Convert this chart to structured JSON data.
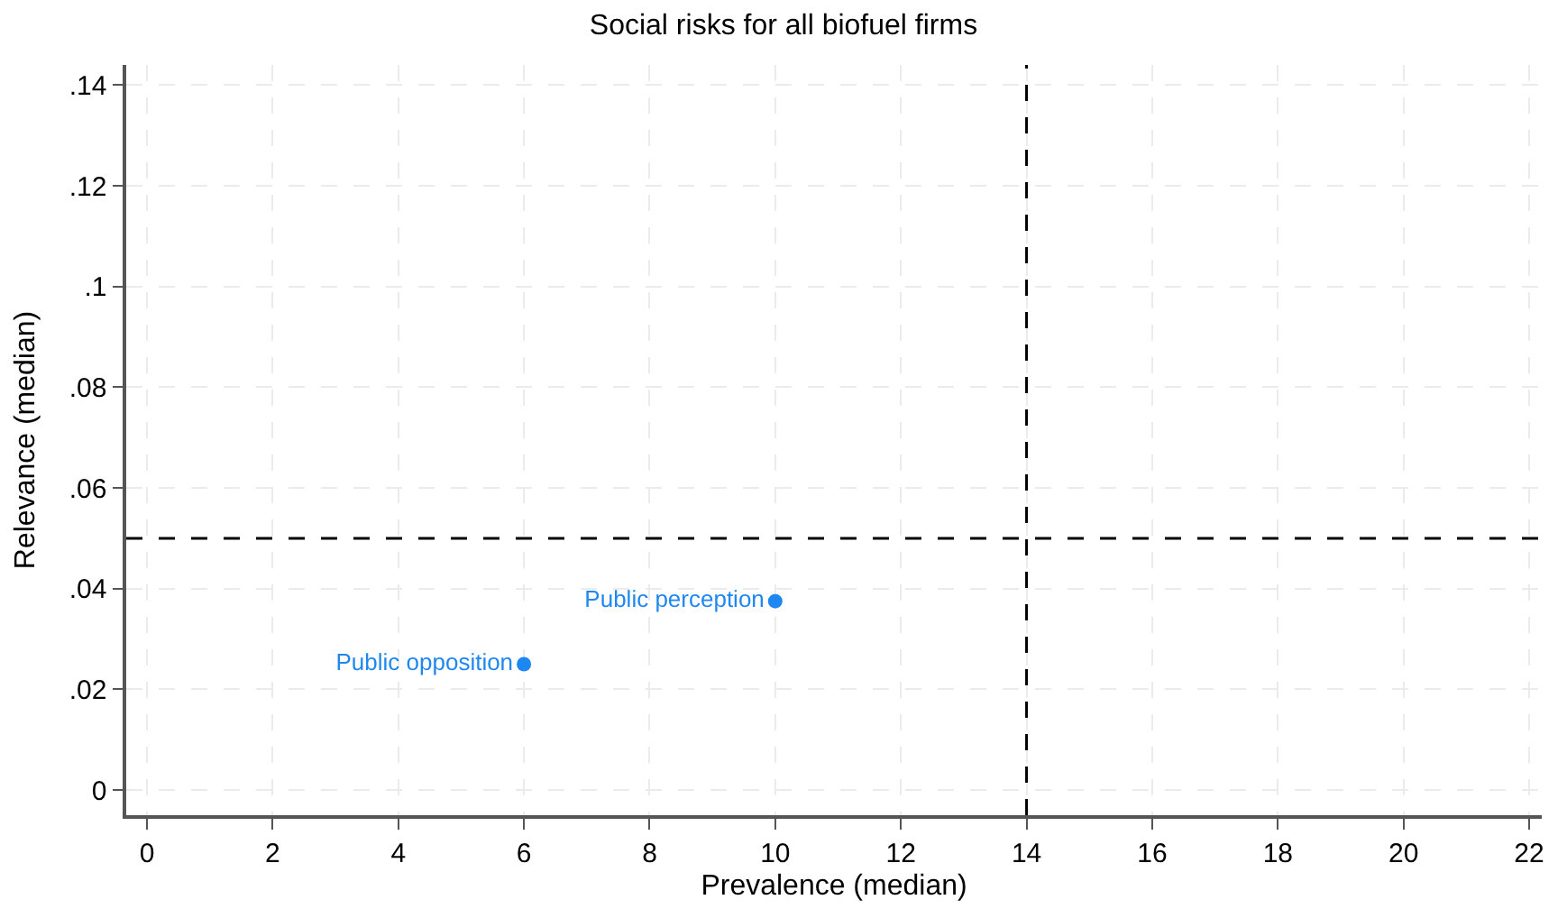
{
  "chart_data": {
    "type": "scatter",
    "title": "Social risks for all biofuel firms",
    "xlabel": "Prevalence (median)",
    "ylabel": "Relevance (median)",
    "x": [
      6,
      10
    ],
    "series": [
      {
        "color": "#1f87f2",
        "values": [
          0.025,
          0.0375
        ],
        "value_labels": [
          "Public opposition",
          "Public perception"
        ]
      }
    ],
    "xlim": [
      -0.33,
      22.2
    ],
    "xticks": [
      0,
      2,
      4,
      6,
      8,
      10,
      12,
      14,
      16,
      18,
      20,
      22
    ],
    "ylim": [
      -0.005,
      0.144
    ],
    "yticks": [
      {
        "value": 0,
        "label": "0"
      },
      {
        "value": 0.02,
        "label": ".02"
      },
      {
        "value": 0.04,
        "label": ".04"
      },
      {
        "value": 0.06,
        "label": ".06"
      },
      {
        "value": 0.08,
        "label": ".08"
      },
      {
        "value": 0.1,
        "label": ".1"
      },
      {
        "value": 0.12,
        "label": ".12"
      },
      {
        "value": 0.14,
        "label": ".14"
      }
    ],
    "ref_lines": [
      {
        "axis": "x",
        "value": 14,
        "color": "#000000",
        "line_style": "dashed"
      },
      {
        "axis": "y",
        "value": 0.05,
        "color": "#000000",
        "line_style": "dashed"
      }
    ],
    "grid": true,
    "legend": false,
    "marker": "circle"
  }
}
